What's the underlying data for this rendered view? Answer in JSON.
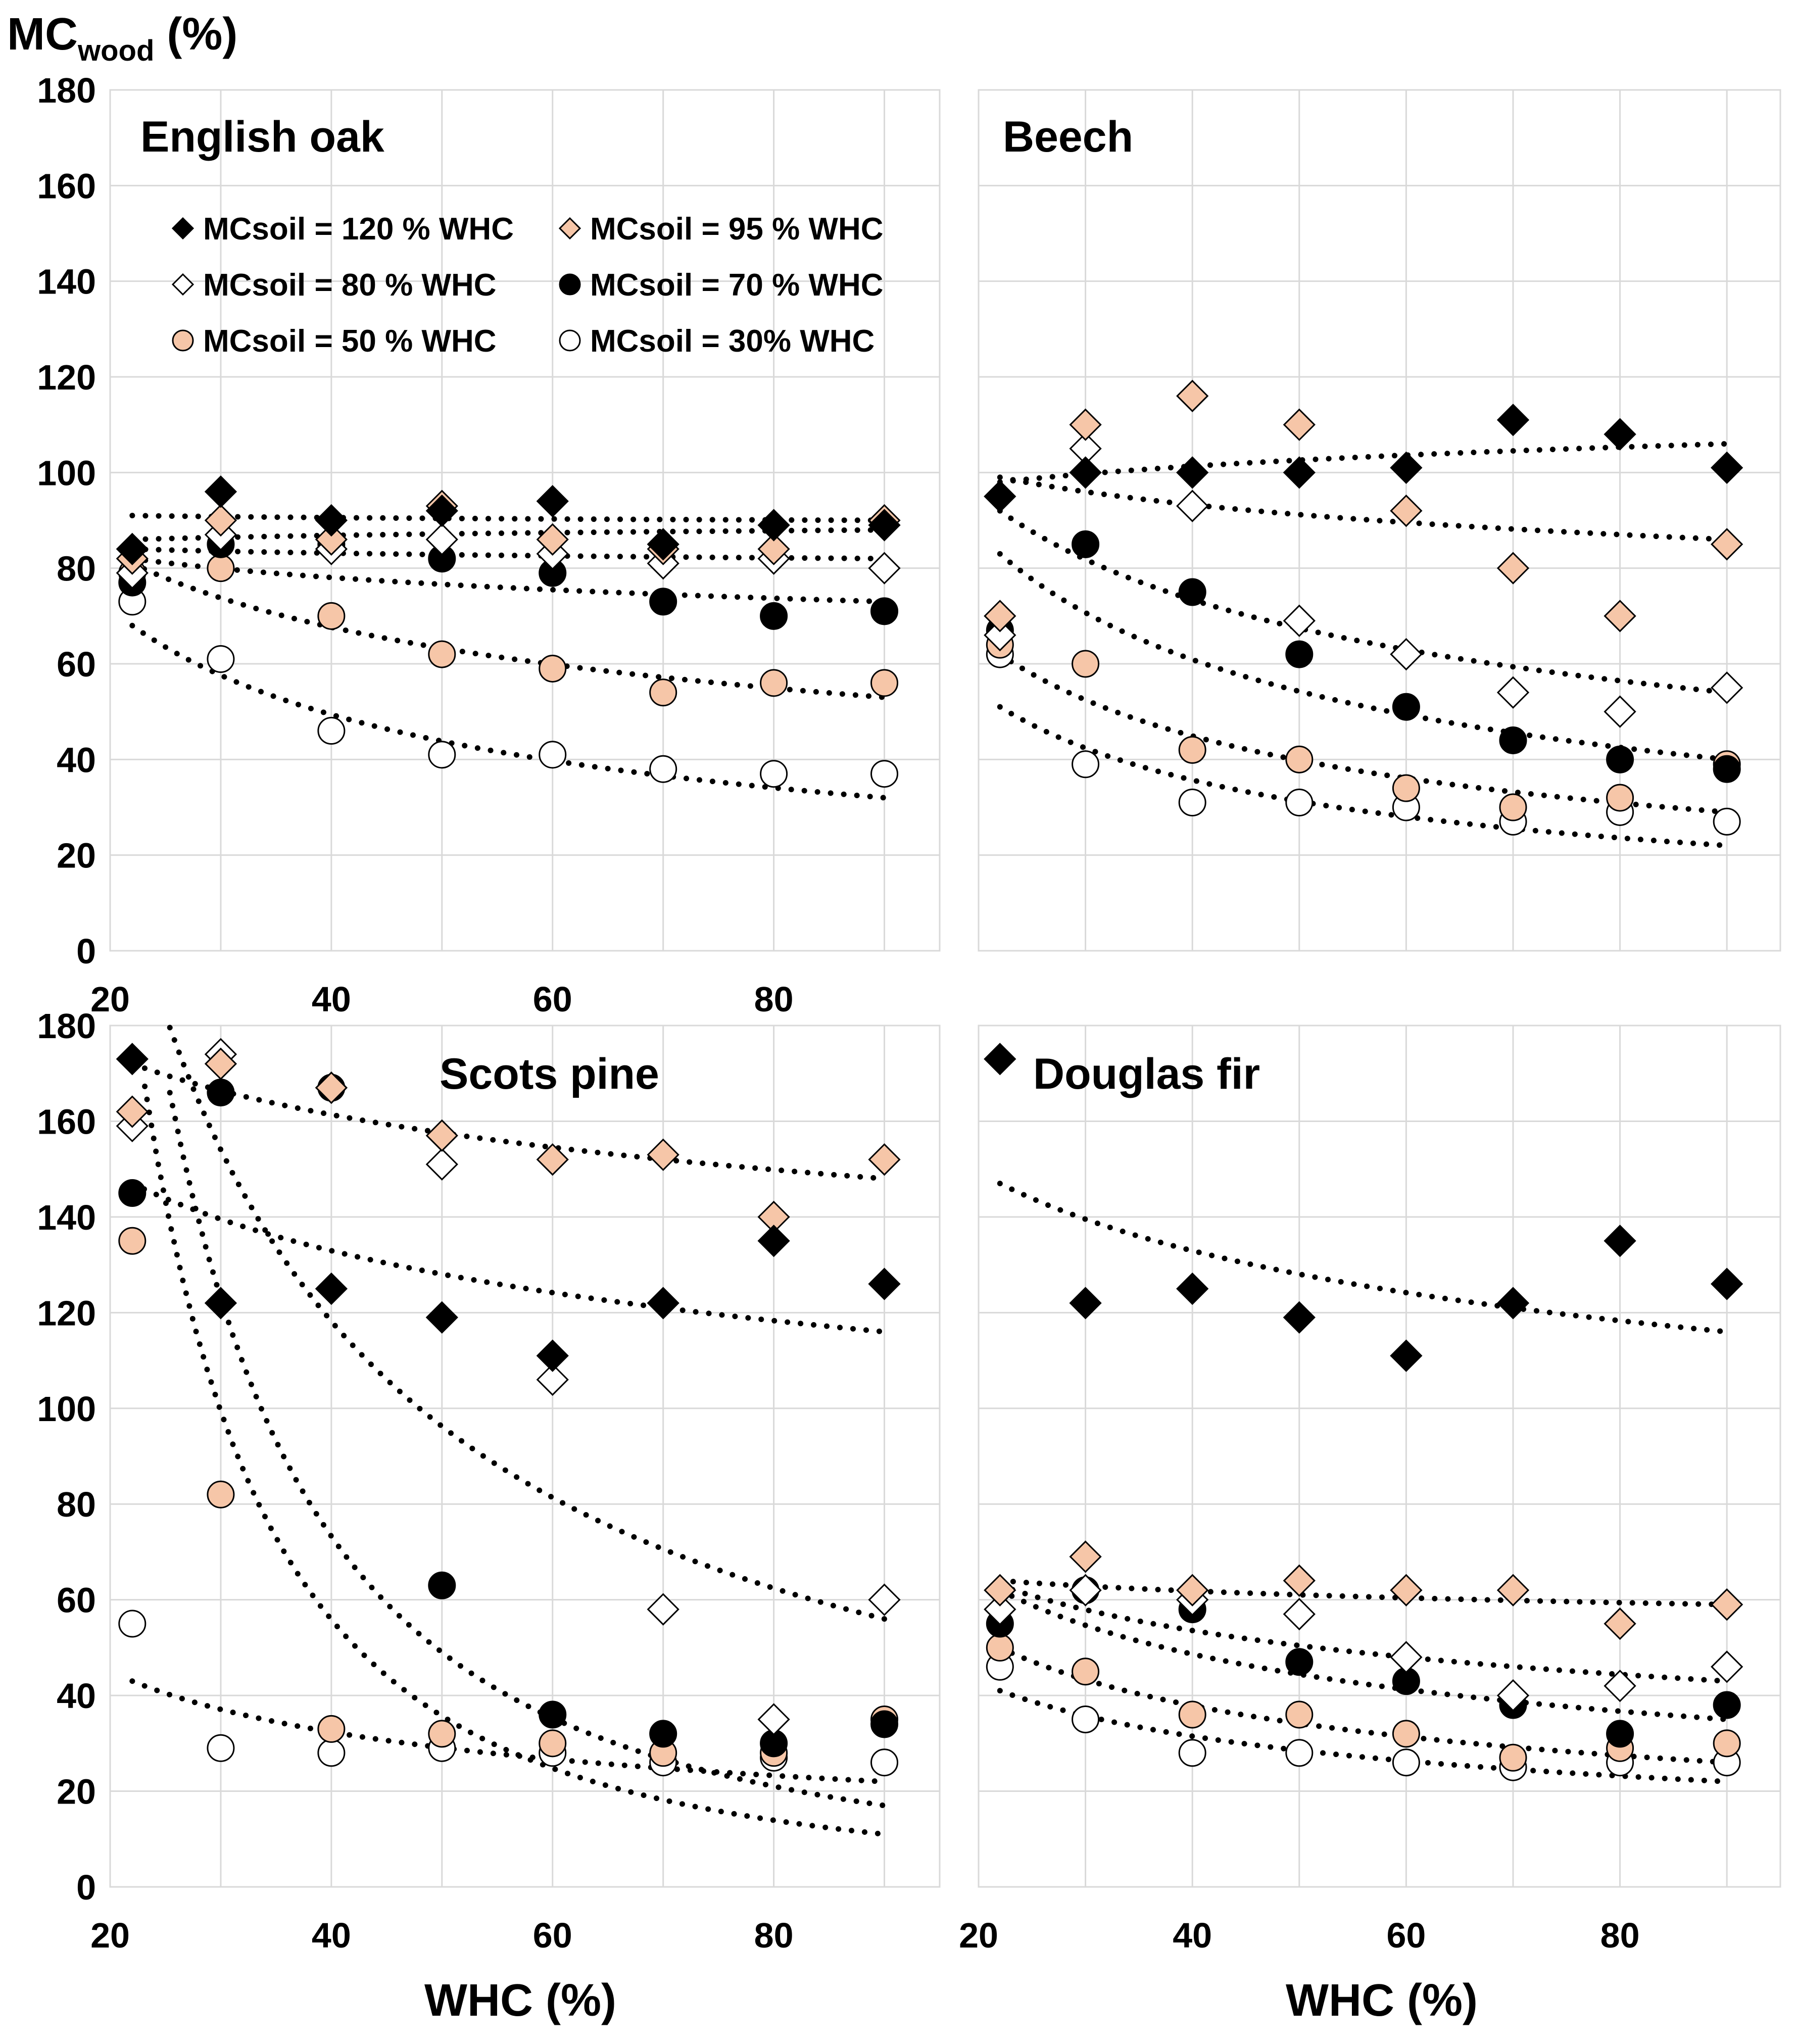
{
  "figure": {
    "y_axis_title_main": "MC",
    "y_axis_title_sub": "wood",
    "y_axis_title_unit": " (%)",
    "x_axis_title": "WHC (%)"
  },
  "legend": [
    {
      "label": "MCsoil = 120 % WHC",
      "marker": "diamond-black"
    },
    {
      "label": "MCsoil = 95 % WHC",
      "marker": "diamond-peach"
    },
    {
      "label": "MCsoil = 80 % WHC",
      "marker": "diamond-white"
    },
    {
      "label": "MCsoil = 70 % WHC",
      "marker": "circle-black"
    },
    {
      "label": "MCsoil = 50 % WHC",
      "marker": "circle-peach"
    },
    {
      "label": "MCsoil = 30% WHC",
      "marker": "circle-white"
    }
  ],
  "colors": {
    "black": "#000000",
    "peach": "#f6c6a8",
    "white": "#ffffff",
    "grid": "#d9d9d9"
  },
  "chart_data": [
    {
      "type": "scatter",
      "title": "English oak",
      "xlabel": "",
      "ylabel": "MCwood (%)",
      "xlim": [
        20,
        95
      ],
      "ylim": [
        0,
        180
      ],
      "xticks": [
        "20",
        "40",
        "60",
        "80"
      ],
      "yticks": [
        "0",
        "20",
        "40",
        "60",
        "80",
        "100",
        "120",
        "140",
        "160",
        "180"
      ],
      "x": [
        22,
        30,
        40,
        50,
        60,
        70,
        80,
        90
      ],
      "series": [
        {
          "name": "MCsoil = 120 % WHC",
          "values": [
            84,
            96,
            90,
            92,
            94,
            85,
            89,
            89
          ]
        },
        {
          "name": "MCsoil = 95 % WHC",
          "values": [
            82,
            90,
            86,
            93,
            86,
            84,
            84,
            90
          ]
        },
        {
          "name": "MCsoil = 80 % WHC",
          "values": [
            79,
            87,
            84,
            86,
            83,
            81,
            82,
            80
          ]
        },
        {
          "name": "MCsoil = 70 % WHC",
          "values": [
            77,
            85,
            85,
            82,
            79,
            73,
            70,
            71
          ]
        },
        {
          "name": "MCsoil = 50 % WHC",
          "values": [
            79,
            80,
            70,
            62,
            59,
            54,
            56,
            56
          ]
        },
        {
          "name": "MCsoil = 30% WHC",
          "values": [
            73,
            61,
            46,
            41,
            41,
            38,
            37,
            37
          ]
        }
      ],
      "trendlines": [
        {
          "series": "MCsoil = 120 % WHC",
          "values": [
            91,
            90
          ]
        },
        {
          "series": "MCsoil = 95 % WHC",
          "values": [
            86,
            88
          ]
        },
        {
          "series": "MCsoil = 80 % WHC",
          "values": [
            84,
            82
          ]
        },
        {
          "series": "MCsoil = 70 % WHC",
          "values": [
            82,
            73
          ]
        },
        {
          "series": "MCsoil = 50 % WHC",
          "values": [
            81,
            53
          ]
        },
        {
          "series": "MCsoil = 30% WHC",
          "values": [
            68,
            32
          ]
        }
      ]
    },
    {
      "type": "scatter",
      "title": "Beech",
      "xlabel": "",
      "ylabel": "",
      "xlim": [
        20,
        95
      ],
      "ylim": [
        0,
        180
      ],
      "xticks": [],
      "yticks": [],
      "x": [
        22,
        30,
        40,
        50,
        60,
        70,
        80,
        90
      ],
      "series": [
        {
          "name": "MCsoil = 120 % WHC",
          "values": [
            95,
            100,
            100,
            100,
            101,
            111,
            108,
            101
          ]
        },
        {
          "name": "MCsoil = 95 % WHC",
          "values": [
            70,
            110,
            116,
            110,
            92,
            80,
            70,
            85
          ]
        },
        {
          "name": "MCsoil = 80 % WHC",
          "values": [
            66,
            105,
            93,
            69,
            62,
            54,
            50,
            55
          ]
        },
        {
          "name": "MCsoil = 70 % WHC",
          "values": [
            67,
            85,
            75,
            62,
            51,
            44,
            40,
            38
          ]
        },
        {
          "name": "MCsoil = 50 % WHC",
          "values": [
            64,
            60,
            42,
            40,
            34,
            30,
            32,
            39
          ]
        },
        {
          "name": "MCsoil = 30% WHC",
          "values": [
            62,
            39,
            31,
            31,
            30,
            27,
            29,
            27
          ]
        }
      ],
      "trendlines": [
        {
          "series": "MCsoil = 120 % WHC",
          "values": [
            98,
            106
          ]
        },
        {
          "series": "MCsoil = 95 % WHC",
          "values": [
            99,
            86
          ]
        },
        {
          "series": "MCsoil = 80 % WHC",
          "values": [
            92,
            54
          ]
        },
        {
          "series": "MCsoil = 70 % WHC",
          "values": [
            83,
            40
          ]
        },
        {
          "series": "MCsoil = 50 % WHC",
          "values": [
            62,
            29
          ]
        },
        {
          "series": "MCsoil = 30% WHC",
          "values": [
            51,
            22
          ]
        }
      ]
    },
    {
      "type": "scatter",
      "title": "Scots pine",
      "xlabel": "WHC (%)",
      "ylabel": "MCwood (%)",
      "xlim": [
        20,
        95
      ],
      "ylim": [
        0,
        180
      ],
      "xticks": [
        "20",
        "40",
        "60",
        "80"
      ],
      "yticks": [
        "0",
        "20",
        "40",
        "60",
        "80",
        "100",
        "120",
        "140",
        "160",
        "180"
      ],
      "x": [
        22,
        30,
        40,
        50,
        60,
        70,
        80,
        90
      ],
      "series": [
        {
          "name": "MCsoil = 120 % WHC",
          "values": [
            173,
            122,
            125,
            119,
            111,
            122,
            135,
            126
          ]
        },
        {
          "name": "MCsoil = 95 % WHC",
          "values": [
            162,
            172,
            167,
            157,
            152,
            153,
            140,
            152
          ]
        },
        {
          "name": "MCsoil = 80 % WHC",
          "values": [
            159,
            174,
            167,
            151,
            106,
            58,
            35,
            60
          ]
        },
        {
          "name": "MCsoil = 70 % WHC",
          "values": [
            145,
            166,
            167,
            63,
            36,
            32,
            30,
            34
          ]
        },
        {
          "name": "MCsoil = 50 % WHC",
          "values": [
            135,
            82,
            33,
            32,
            30,
            28,
            28,
            35
          ]
        },
        {
          "name": "MCsoil = 30% WHC",
          "values": [
            55,
            29,
            28,
            29,
            28,
            26,
            27,
            26
          ]
        }
      ],
      "trendlines": [
        {
          "series": "MCsoil = 95 % WHC",
          "values": [
            172,
            148
          ]
        },
        {
          "series": "MCsoil = 120 % WHC",
          "values": [
            147,
            116
          ]
        },
        {
          "series": "MCsoil = 80 % WHC",
          "values": [
            205,
            56
          ]
        },
        {
          "series": "MCsoil = 70 % WHC",
          "values": [
            215,
            17
          ]
        },
        {
          "series": "MCsoil = 50 % WHC",
          "values": [
            185,
            11
          ]
        },
        {
          "series": "MCsoil = 30% WHC",
          "values": [
            43,
            22
          ]
        }
      ]
    },
    {
      "type": "scatter",
      "title": "Douglas fir",
      "xlabel": "WHC (%)",
      "ylabel": "",
      "xlim": [
        20,
        95
      ],
      "ylim": [
        0,
        180
      ],
      "xticks": [
        "20",
        "40",
        "60",
        "80"
      ],
      "yticks": [],
      "x": [
        22,
        30,
        40,
        50,
        60,
        70,
        80,
        90
      ],
      "series": [
        {
          "name": "MCsoil = 120 % WHC",
          "values": [
            173,
            122,
            125,
            119,
            111,
            122,
            135,
            126
          ]
        },
        {
          "name": "MCsoil = 95 % WHC",
          "values": [
            62,
            69,
            62,
            64,
            62,
            62,
            55,
            59
          ]
        },
        {
          "name": "MCsoil = 80 % WHC",
          "values": [
            58,
            62,
            60,
            57,
            48,
            40,
            42,
            46
          ]
        },
        {
          "name": "MCsoil = 70 % WHC",
          "values": [
            55,
            62,
            58,
            47,
            43,
            38,
            32,
            38
          ]
        },
        {
          "name": "MCsoil = 50 % WHC",
          "values": [
            50,
            45,
            36,
            36,
            32,
            27,
            29,
            30
          ]
        },
        {
          "name": "MCsoil = 30% WHC",
          "values": [
            46,
            35,
            28,
            28,
            26,
            25,
            26,
            26
          ]
        }
      ],
      "trendlines": [
        {
          "series": "MCsoil = 120 % WHC",
          "values": [
            147,
            116
          ]
        },
        {
          "series": "MCsoil = 95 % WHC",
          "values": [
            64,
            59
          ]
        },
        {
          "series": "MCsoil = 80 % WHC",
          "values": [
            63,
            43
          ]
        },
        {
          "series": "MCsoil = 70 % WHC",
          "values": [
            62,
            35
          ]
        },
        {
          "series": "MCsoil = 50 % WHC",
          "values": [
            50,
            26
          ]
        },
        {
          "series": "MCsoil = 30% WHC",
          "values": [
            41,
            22
          ]
        }
      ]
    }
  ]
}
